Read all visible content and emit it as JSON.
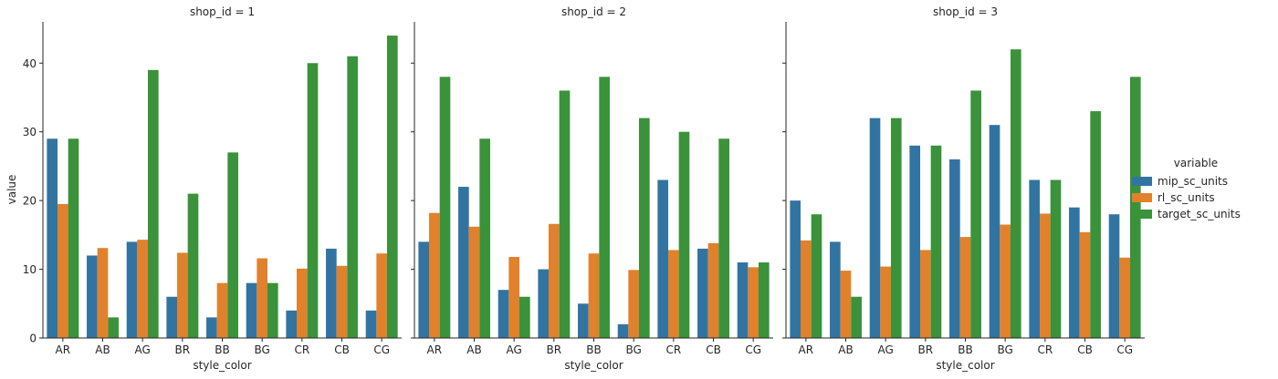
{
  "chart_data": {
    "type": "bar",
    "facet_variable": "shop_id",
    "xlabel": "style_color",
    "ylabel": "value",
    "ylim": [
      0,
      46
    ],
    "yticks": [
      0,
      10,
      20,
      30,
      40
    ],
    "categories": [
      "AR",
      "AB",
      "AG",
      "BR",
      "BB",
      "BG",
      "CR",
      "CB",
      "CG"
    ],
    "legend": {
      "title": "variable",
      "placement": "right",
      "entries": [
        "mip_sc_units",
        "rl_sc_units",
        "target_sc_units"
      ]
    },
    "colors": [
      "#3274a1",
      "#e1812c",
      "#3a923a"
    ],
    "panels": [
      {
        "title": "shop_id = 1",
        "series": [
          {
            "name": "mip_sc_units",
            "values": [
              29,
              12,
              14,
              6,
              3,
              8,
              4,
              13,
              4
            ]
          },
          {
            "name": "rl_sc_units",
            "values": [
              19.5,
              13.1,
              14.3,
              12.4,
              8,
              11.6,
              10.1,
              10.5,
              12.3
            ]
          },
          {
            "name": "target_sc_units",
            "values": [
              29,
              3,
              39,
              21,
              27,
              8,
              40,
              41,
              44
            ]
          }
        ]
      },
      {
        "title": "shop_id = 2",
        "series": [
          {
            "name": "mip_sc_units",
            "values": [
              14,
              22,
              7,
              10,
              5,
              2,
              23,
              13,
              11
            ]
          },
          {
            "name": "rl_sc_units",
            "values": [
              18.2,
              16.2,
              11.8,
              16.6,
              12.3,
              9.9,
              12.8,
              13.8,
              10.3
            ]
          },
          {
            "name": "target_sc_units",
            "values": [
              38,
              29,
              6,
              36,
              38,
              32,
              30,
              29,
              11
            ]
          }
        ]
      },
      {
        "title": "shop_id = 3",
        "series": [
          {
            "name": "mip_sc_units",
            "values": [
              20,
              14,
              32,
              28,
              26,
              31,
              23,
              19,
              18
            ]
          },
          {
            "name": "rl_sc_units",
            "values": [
              14.2,
              9.8,
              10.4,
              12.8,
              14.7,
              16.5,
              18.1,
              15.4,
              11.7
            ]
          },
          {
            "name": "target_sc_units",
            "values": [
              18,
              6,
              32,
              28,
              36,
              42,
              23,
              33,
              38
            ]
          }
        ]
      }
    ]
  }
}
